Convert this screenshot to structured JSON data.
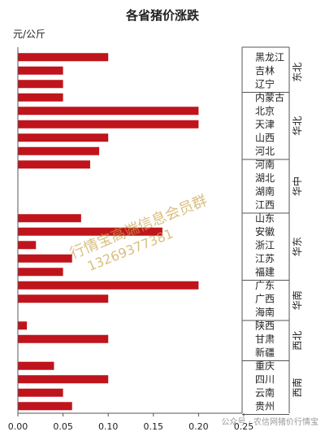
{
  "chart_data": {
    "type": "bar",
    "orientation": "horizontal",
    "title": "各省猪价涨跌",
    "unit_label": "元/公斤",
    "xlim": [
      0,
      0.25
    ],
    "x_ticks": [
      "0.00",
      "0.05",
      "0.10",
      "0.15",
      "0.20",
      "0.25"
    ],
    "bar_color": "#c0141c",
    "grid": false,
    "groups": [
      {
        "region": "东北",
        "items": [
          {
            "province": "黑龙江",
            "value": 0.1
          },
          {
            "province": "吉林",
            "value": 0.05
          },
          {
            "province": "辽宁",
            "value": 0.05
          }
        ]
      },
      {
        "region": "华北",
        "items": [
          {
            "province": "内蒙古",
            "value": 0.05
          },
          {
            "province": "北京",
            "value": 0.2
          },
          {
            "province": "天津",
            "value": 0.2
          },
          {
            "province": "山西",
            "value": 0.1
          },
          {
            "province": "河北",
            "value": 0.09
          }
        ]
      },
      {
        "region": "华中",
        "items": [
          {
            "province": "河南",
            "value": 0.08
          },
          {
            "province": "湖北",
            "value": 0.0
          },
          {
            "province": "湖南",
            "value": 0.0
          },
          {
            "province": "江西",
            "value": 0.0
          }
        ]
      },
      {
        "region": "华东",
        "items": [
          {
            "province": "山东",
            "value": 0.07
          },
          {
            "province": "安徽",
            "value": 0.16
          },
          {
            "province": "浙江",
            "value": 0.02
          },
          {
            "province": "江苏",
            "value": 0.06
          },
          {
            "province": "福建",
            "value": 0.05
          }
        ]
      },
      {
        "region": "华南",
        "items": [
          {
            "province": "广东",
            "value": 0.2
          },
          {
            "province": "广西",
            "value": 0.1
          },
          {
            "province": "海南",
            "value": 0.0
          }
        ]
      },
      {
        "region": "西北",
        "items": [
          {
            "province": "陕西",
            "value": 0.01
          },
          {
            "province": "甘肃",
            "value": 0.1
          },
          {
            "province": "新疆",
            "value": 0.0
          }
        ]
      },
      {
        "region": "西南",
        "items": [
          {
            "province": "重庆",
            "value": 0.04
          },
          {
            "province": "四川",
            "value": 0.1
          },
          {
            "province": "云南",
            "value": 0.05
          },
          {
            "province": "贵州",
            "value": 0.06
          }
        ]
      }
    ]
  },
  "watermark": {
    "text": "行情宝高端信息会员群",
    "phone": "13269377381"
  },
  "footer": {
    "text": "公众号 · 农信网猪价行情宝"
  }
}
